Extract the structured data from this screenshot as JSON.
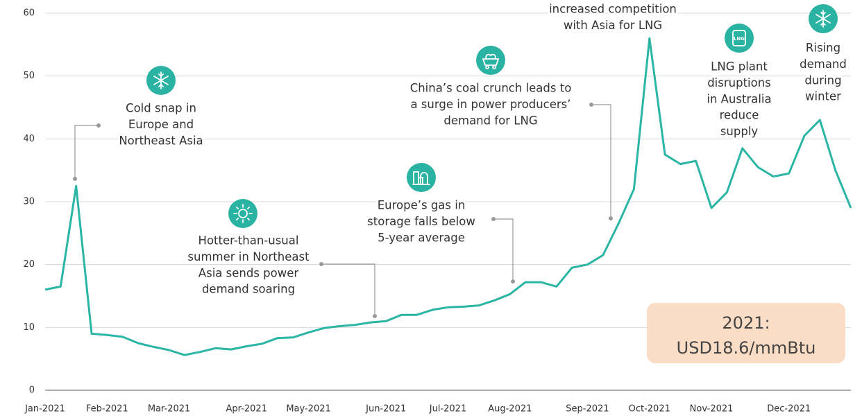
{
  "chart_data": {
    "type": "line",
    "categories": [
      "Jan-2021",
      null,
      null,
      null,
      "Feb-2021",
      null,
      null,
      null,
      "Mar-2021",
      null,
      null,
      null,
      null,
      "Apr-2021",
      null,
      null,
      null,
      "May-2021",
      null,
      null,
      null,
      null,
      "Jun-2021",
      null,
      null,
      null,
      "Jul-2021",
      null,
      null,
      null,
      "Aug-2021",
      null,
      null,
      null,
      null,
      "Sep-2021",
      null,
      null,
      null,
      "Oct-2021",
      null,
      null,
      null,
      "Nov-2021",
      null,
      null,
      null,
      null,
      "Dec-2021",
      null,
      null,
      null,
      null
    ],
    "values": [
      16,
      16.5,
      32.5,
      9,
      8.8,
      8.5,
      7.5,
      6.9,
      6.4,
      5.6,
      6.1,
      6.7,
      6.5,
      7.0,
      7.4,
      8.3,
      8.4,
      9.2,
      9.9,
      10.2,
      10.4,
      10.8,
      11.0,
      12.0,
      12.0,
      12.8,
      13.2,
      13.3,
      13.5,
      14.3,
      15.3,
      17.2,
      17.2,
      16.5,
      19.5,
      20.0,
      21.5,
      26.5,
      32,
      56,
      37.5,
      36.0,
      36.5,
      29.0,
      31.5,
      38.5,
      35.5,
      34.0,
      34.5,
      40.5,
      43.0,
      35.0,
      29.0
    ],
    "color": "#2bb5a5",
    "ylim": [
      0,
      60
    ],
    "yticks": [
      0,
      10,
      20,
      30,
      40,
      50,
      60
    ],
    "grid": true,
    "annotations": [
      {
        "lines": [
          "Cold snap in",
          "Europe and",
          "Northeast Asia"
        ]
      },
      {
        "lines": [
          "Hotter-than-usual",
          "summer in Northeast",
          "Asia sends power",
          "demand soaring"
        ]
      },
      {
        "lines": [
          "Europe’s gas in",
          "storage falls below",
          "5-year average"
        ]
      },
      {
        "lines": [
          "China’s coal crunch leads to",
          "a surge in power producers’",
          "demand for LNG"
        ]
      },
      {
        "lines": [
          "increased competition",
          "with Asia for LNG"
        ]
      },
      {
        "lines": [
          "LNG plant",
          "disruptions",
          "in Australia",
          "reduce",
          "supply"
        ]
      },
      {
        "lines": [
          "Rising",
          "demand",
          "during",
          "winter"
        ]
      }
    ],
    "summary": {
      "label": "2021:",
      "value": "USD18.6/mmBtu"
    }
  }
}
